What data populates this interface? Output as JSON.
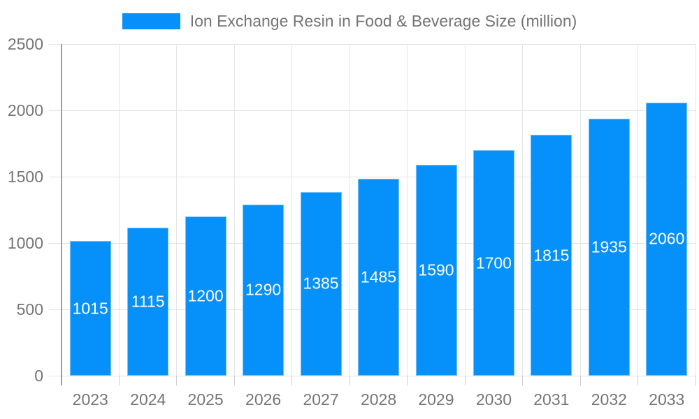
{
  "chart_data": {
    "type": "bar",
    "title": "Ion Exchange Resin in Food & Beverage Size (million)",
    "categories": [
      "2023",
      "2024",
      "2025",
      "2026",
      "2027",
      "2028",
      "2029",
      "2030",
      "2031",
      "2032",
      "2033"
    ],
    "values": [
      1015,
      1115,
      1200,
      1290,
      1385,
      1485,
      1590,
      1700,
      1815,
      1935,
      2060
    ],
    "xlabel": "",
    "ylabel": "",
    "ylim": [
      0,
      2500
    ],
    "yticks": [
      0,
      500,
      1000,
      1500,
      2000,
      2500
    ],
    "grid": true,
    "legend_position": "top",
    "colors": {
      "bar": "#0590fa",
      "bar_label": "#ffffff",
      "grid_line": "#e2e2e2",
      "axis_line": "#9e9e9e",
      "tick_text": "#757575"
    }
  }
}
